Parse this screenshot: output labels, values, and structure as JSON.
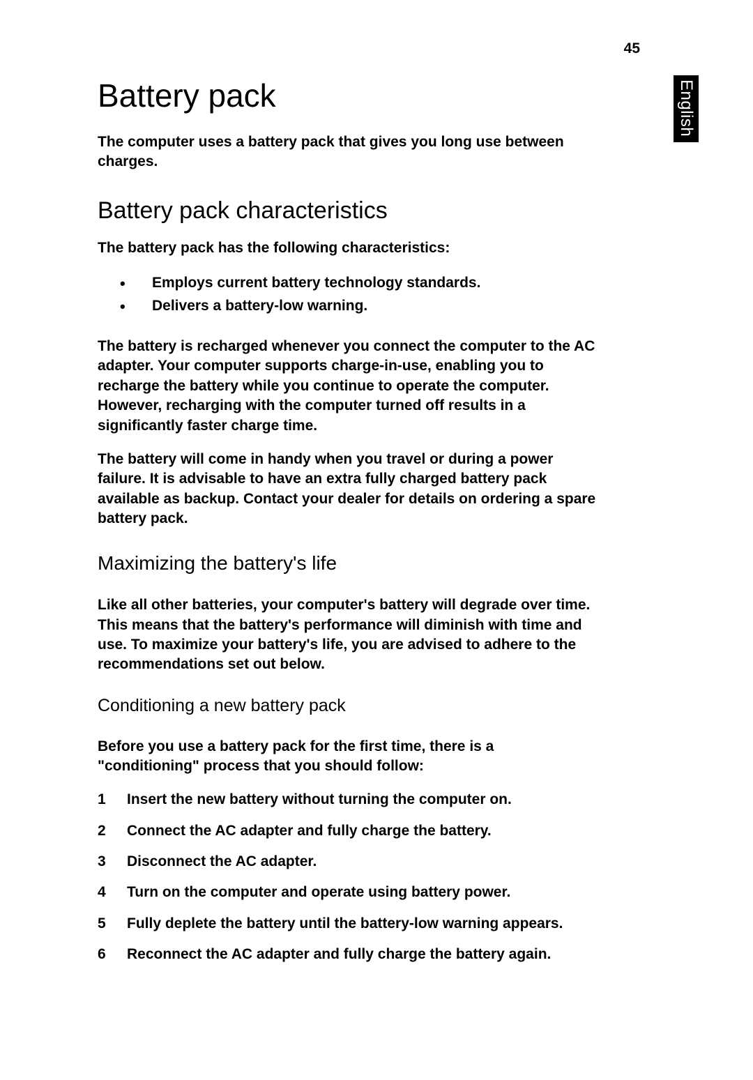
{
  "page_number": "45",
  "side_tab": "English",
  "h1": "Battery pack",
  "intro": "The computer uses a battery pack that gives you long use between charges.",
  "h2": "Battery pack characteristics",
  "char_intro": "The battery pack has the following characteristics:",
  "bullets": [
    "Employs current battery technology standards.",
    "Delivers a battery-low warning."
  ],
  "char_p1": "The battery is recharged whenever you connect the computer to the AC adapter. Your computer supports charge-in-use, enabling you to recharge the battery while you continue to operate the computer. However, recharging with the computer turned off results in a significantly faster charge time.",
  "char_p2": "The battery will come in handy when you travel or during a power failure. It is advisable to have an extra fully charged battery pack available as backup. Contact your dealer for details on ordering a spare battery pack.",
  "h3": "Maximizing the battery's life",
  "max_p1": "Like all other batteries, your computer's battery will degrade over time. This means that the battery's performance will diminish with time and use. To maximize your battery's life, you are advised to adhere to the recommendations set out below.",
  "h4": "Conditioning a new battery pack",
  "cond_intro": "Before you use a battery pack for the first time, there is a \"conditioning\" process that you should follow:",
  "steps": [
    "Insert the new battery without turning the computer on.",
    "Connect the AC adapter and fully charge the battery.",
    "Disconnect the AC adapter.",
    "Turn on the computer and operate using battery power.",
    "Fully deplete the battery until the battery-low warning appears.",
    "Reconnect the AC adapter and fully charge the battery again."
  ],
  "colors": {
    "background": "#ffffff",
    "text": "#000000",
    "tab_bg": "#000000",
    "tab_text": "#ffffff"
  },
  "typography": {
    "h1_fontsize": 46,
    "h2_fontsize": 34,
    "h3_fontsize": 28,
    "h4_fontsize": 25,
    "body_fontsize": 21,
    "body_weight": 600,
    "heading_weight": 400
  }
}
